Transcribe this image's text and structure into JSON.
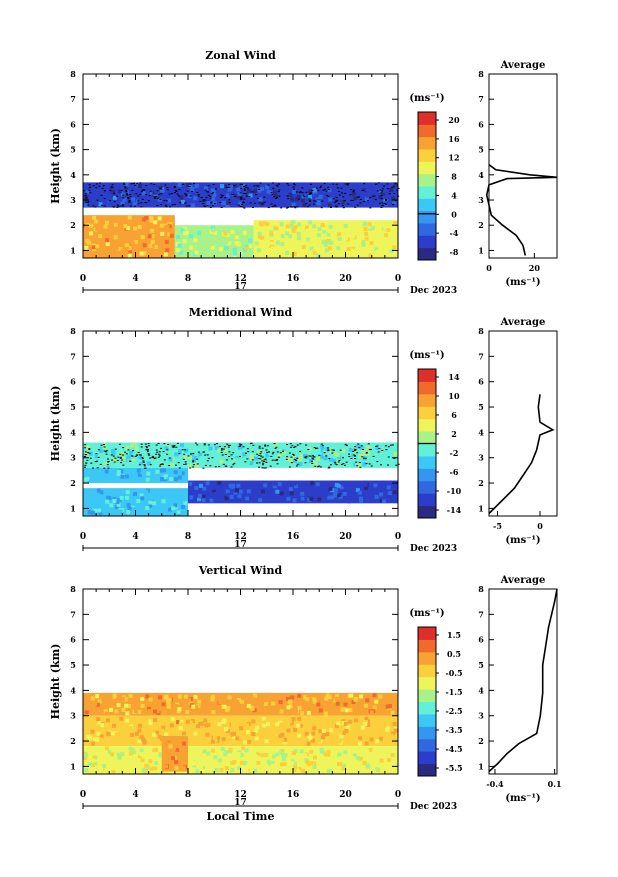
{
  "colors": {
    "white": "#ffffff",
    "black": "#000000",
    "jet": [
      "#2a2a80",
      "#2c3ec9",
      "#2f68e0",
      "#3596ef",
      "#3cc8f6",
      "#62f0d6",
      "#a8f28a",
      "#eef55a",
      "#fbd03c",
      "#f8a233",
      "#f06a2c",
      "#df2f2a"
    ]
  },
  "chart_data": [
    {
      "type": "heatmap",
      "title": "Zonal Wind",
      "xlabel": "",
      "ylabel": "Height (km)",
      "x_ticks": [
        "0",
        "4",
        "8",
        "12",
        "16",
        "20",
        "0"
      ],
      "y_ticks": [
        "1",
        "2",
        "3",
        "4",
        "5",
        "6",
        "7",
        "8"
      ],
      "xlim": [
        0,
        24
      ],
      "ylim": [
        0.7,
        8
      ],
      "date_marker": "17",
      "date_label": "Dec 2023",
      "colorbar": {
        "unit": "(ms⁻¹)",
        "ticks": [
          "20",
          "16",
          "12",
          "8",
          "4",
          "0",
          "-4",
          "-8"
        ],
        "min": -10,
        "max": 22,
        "zero_line": 0
      },
      "regions": [
        {
          "x": [
            0,
            24
          ],
          "y": [
            2.7,
            3.7
          ],
          "value": -5
        },
        {
          "x": [
            0,
            7
          ],
          "y": [
            0.7,
            2.4
          ],
          "value": 14
        },
        {
          "x": [
            7,
            13
          ],
          "y": [
            0.7,
            2.0
          ],
          "value": 8
        },
        {
          "x": [
            13,
            24
          ],
          "y": [
            0.7,
            2.2
          ],
          "value": 10
        }
      ],
      "profile": {
        "title": "Average",
        "x_ticks": [
          "0",
          "20"
        ],
        "xlim": [
          0,
          30
        ],
        "xlabel": "(ms⁻¹)",
        "points": [
          [
            16,
            0.8
          ],
          [
            15,
            1.2
          ],
          [
            12,
            1.6
          ],
          [
            6,
            2.0
          ],
          [
            1,
            2.4
          ],
          [
            0,
            2.8
          ],
          [
            -1,
            3.2
          ],
          [
            0,
            3.6
          ],
          [
            8,
            3.85
          ],
          [
            30,
            3.9
          ],
          [
            18,
            4.0
          ],
          [
            3,
            4.2
          ],
          [
            0,
            4.4
          ]
        ]
      }
    },
    {
      "type": "heatmap",
      "title": "Meridional Wind",
      "xlabel": "",
      "ylabel": "Height (km)",
      "x_ticks": [
        "0",
        "4",
        "8",
        "12",
        "16",
        "20",
        "0"
      ],
      "y_ticks": [
        "1",
        "2",
        "3",
        "4",
        "5",
        "6",
        "7",
        "8"
      ],
      "xlim": [
        0,
        24
      ],
      "ylim": [
        0.7,
        8
      ],
      "date_marker": "17",
      "date_label": "Dec 2023",
      "colorbar": {
        "unit": "(ms⁻¹)",
        "ticks": [
          "14",
          "10",
          "6",
          "2",
          "-2",
          "-6",
          "-10",
          "-14"
        ],
        "min": -16,
        "max": 16,
        "zero_line": 0
      },
      "regions": [
        {
          "x": [
            0,
            24
          ],
          "y": [
            2.6,
            3.6
          ],
          "value": -1
        },
        {
          "x": [
            0,
            8
          ],
          "y": [
            2.0,
            2.6
          ],
          "value": -4
        },
        {
          "x": [
            8,
            24
          ],
          "y": [
            1.2,
            2.1
          ],
          "value": -11
        },
        {
          "x": [
            0,
            8
          ],
          "y": [
            0.7,
            1.8
          ],
          "value": -4
        }
      ],
      "profile": {
        "title": "Average",
        "x_ticks": [
          "-5",
          "0"
        ],
        "xlim": [
          -6,
          2
        ],
        "xlabel": "(ms⁻¹)",
        "points": [
          [
            -6,
            0.8
          ],
          [
            -4.5,
            1.3
          ],
          [
            -3,
            1.8
          ],
          [
            -2,
            2.3
          ],
          [
            -1,
            2.8
          ],
          [
            -0.4,
            3.3
          ],
          [
            0,
            3.9
          ],
          [
            1.5,
            4.1
          ],
          [
            0,
            4.4
          ],
          [
            -0.2,
            5.0
          ],
          [
            0,
            5.5
          ]
        ]
      }
    },
    {
      "type": "heatmap",
      "title": "Vertical Wind",
      "xlabel": "Local Time",
      "ylabel": "Height (km)",
      "x_ticks": [
        "0",
        "4",
        "8",
        "12",
        "16",
        "20",
        "0"
      ],
      "y_ticks": [
        "1",
        "2",
        "3",
        "4",
        "5",
        "6",
        "7",
        "8"
      ],
      "xlim": [
        0,
        24
      ],
      "ylim": [
        0.7,
        8
      ],
      "date_marker": "17",
      "date_label": "Dec 2023",
      "colorbar": {
        "unit": "(ms⁻¹)",
        "ticks": [
          "1.5",
          "0.5",
          "-0.5",
          "-1.5",
          "-2.5",
          "-3.5",
          "-4.5",
          "-5.5"
        ],
        "min": -6,
        "max": 2,
        "zero_line": null
      },
      "regions": [
        {
          "x": [
            0,
            24
          ],
          "y": [
            3.0,
            3.9
          ],
          "value": 0.0
        },
        {
          "x": [
            0,
            24
          ],
          "y": [
            1.8,
            3.0
          ],
          "value": -0.2
        },
        {
          "x": [
            0,
            24
          ],
          "y": [
            0.7,
            1.8
          ],
          "value": -1.0
        },
        {
          "x": [
            6,
            8
          ],
          "y": [
            0.8,
            2.2
          ],
          "value": 0.5
        }
      ],
      "profile": {
        "title": "Average",
        "x_ticks": [
          "-0.4",
          "0.1"
        ],
        "xlim": [
          -0.45,
          0.12
        ],
        "xlabel": "(ms⁻¹)",
        "points": [
          [
            -0.45,
            0.8
          ],
          [
            -0.38,
            1.1
          ],
          [
            -0.3,
            1.5
          ],
          [
            -0.2,
            1.9
          ],
          [
            -0.05,
            2.3
          ],
          [
            -0.02,
            3.0
          ],
          [
            0.0,
            3.9
          ],
          [
            0.0,
            5.0
          ],
          [
            0.02,
            5.6
          ],
          [
            0.05,
            6.5
          ],
          [
            0.1,
            7.5
          ],
          [
            0.12,
            8.0
          ]
        ]
      }
    }
  ]
}
